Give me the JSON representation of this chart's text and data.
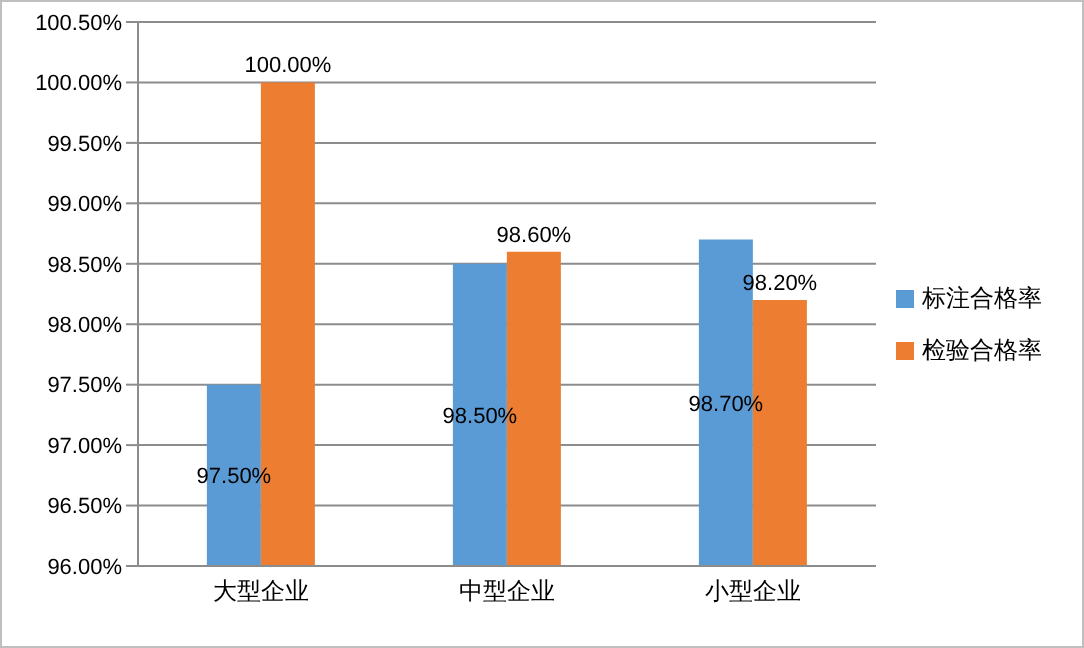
{
  "chart_data": {
    "type": "bar",
    "categories": [
      "大型企业",
      "中型企业",
      "小型企业"
    ],
    "series": [
      {
        "name": "标注合格率",
        "color": "#5b9bd5",
        "values": [
          97.5,
          98.5,
          98.7
        ],
        "value_labels": [
          "97.50%",
          "98.50%",
          "98.70%"
        ]
      },
      {
        "name": "检验合格率",
        "color": "#ed7d31",
        "values": [
          100,
          98.6,
          98.2
        ],
        "value_labels": [
          "100.00%",
          "98.60%",
          "98.20%"
        ]
      }
    ],
    "ylim": [
      96,
      100.5
    ],
    "yticks": [
      {
        "value": 96,
        "label": "96.00%"
      },
      {
        "value": 96.5,
        "label": "96.50%"
      },
      {
        "value": 97,
        "label": "97.00%"
      },
      {
        "value": 97.5,
        "label": "97.50%"
      },
      {
        "value": 98,
        "label": "98.00%"
      },
      {
        "value": 98.5,
        "label": "98.50%"
      },
      {
        "value": 99,
        "label": "99.00%"
      },
      {
        "value": 99.5,
        "label": "99.50%"
      },
      {
        "value": 100,
        "label": "100.00%"
      },
      {
        "value": 100.5,
        "label": "100.50%"
      }
    ],
    "grid": "y",
    "legend": "right"
  }
}
